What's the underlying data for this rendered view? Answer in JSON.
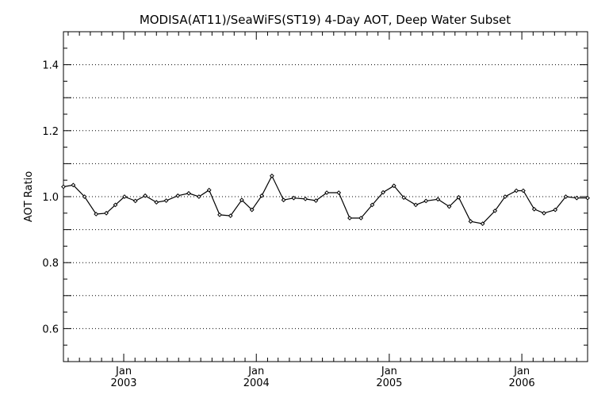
{
  "chart_data": {
    "type": "line",
    "title": "MODISA(AT11)/SeaWiFS(ST19) 4-Day AOT, Deep Water Subset",
    "xlabel": "",
    "ylabel": "AOT Ratio",
    "xlim": [
      "2002-07-19",
      "2006-07-01"
    ],
    "ylim": [
      0.5,
      1.5
    ],
    "yticks": [
      "0.6",
      "0.8",
      "1.0",
      "1.2",
      "1.4"
    ],
    "xticks": [
      {
        "date": "2003-01-01",
        "month": "Jan",
        "year": "2003"
      },
      {
        "date": "2004-01-01",
        "month": "Jan",
        "year": "2004"
      },
      {
        "date": "2005-01-01",
        "month": "Jan",
        "year": "2005"
      },
      {
        "date": "2006-01-01",
        "month": "Jan",
        "year": "2006"
      }
    ],
    "grid": "horizontal dotted",
    "series": [
      {
        "color": "#000000",
        "marker": "diamond",
        "x": [
          "2002-07-19",
          "2002-08-15",
          "2002-09-15",
          "2002-10-17",
          "2002-11-14",
          "2002-12-09",
          "2003-01-03",
          "2003-02-02",
          "2003-03-01",
          "2003-04-01",
          "2003-04-28",
          "2003-05-30",
          "2003-06-29",
          "2003-07-27",
          "2003-08-24",
          "2003-09-22",
          "2003-10-22",
          "2003-11-22",
          "2003-12-20",
          "2004-01-16",
          "2004-02-13",
          "2004-03-16",
          "2004-04-13",
          "2004-05-15",
          "2004-06-13",
          "2004-07-13",
          "2004-08-15",
          "2004-09-14",
          "2004-10-15",
          "2004-11-15",
          "2004-12-15",
          "2005-01-14",
          "2005-02-10",
          "2005-03-15",
          "2005-04-12",
          "2005-05-15",
          "2005-06-15",
          "2005-07-11",
          "2005-08-13",
          "2005-09-15",
          "2005-10-19",
          "2005-11-16",
          "2005-12-17",
          "2006-01-05",
          "2006-02-04",
          "2006-03-03",
          "2006-04-03",
          "2006-05-02",
          "2006-06-01",
          "2006-07-01"
        ],
        "y": [
          1.03,
          1.035,
          1.0,
          0.947,
          0.95,
          0.975,
          1.0,
          0.987,
          1.003,
          0.983,
          0.988,
          1.003,
          1.01,
          1.0,
          1.02,
          0.945,
          0.942,
          0.99,
          0.96,
          1.003,
          1.063,
          0.99,
          0.996,
          0.993,
          0.988,
          1.012,
          1.012,
          0.935,
          0.935,
          0.975,
          1.013,
          1.033,
          0.997,
          0.975,
          0.987,
          0.992,
          0.97,
          0.998,
          0.925,
          0.918,
          0.957,
          1.0,
          1.018,
          1.018,
          0.962,
          0.95,
          0.96,
          1.0,
          0.996,
          0.996
        ]
      }
    ]
  }
}
